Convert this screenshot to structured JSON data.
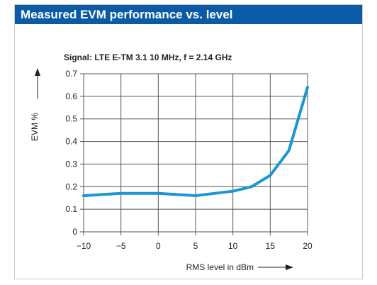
{
  "header": {
    "title": "Measured EVM performance vs. level"
  },
  "chart_data": {
    "type": "line",
    "title": "",
    "subtitle": "Signal: LTE E-TM 3.1 10 MHz, f = 2.14 GHz",
    "xlabel": "RMS level in dBm",
    "ylabel": "EVM %",
    "xlim": [
      -10,
      20
    ],
    "ylim": [
      0,
      0.7
    ],
    "x_ticks": [
      -10,
      -5,
      0,
      5,
      10,
      15,
      20
    ],
    "x_tick_labels": [
      "−10",
      "−5",
      "0",
      "5",
      "10",
      "15",
      "20"
    ],
    "y_ticks": [
      0,
      0.1,
      0.2,
      0.3,
      0.4,
      0.5,
      0.6,
      0.7
    ],
    "y_tick_labels": [
      "0",
      "0.1",
      "0.2",
      "0.3",
      "0.4",
      "0.5",
      "0.6",
      "0.7"
    ],
    "grid": true,
    "series": [
      {
        "x": [
          -10,
          -7.5,
          -5,
          -2.5,
          0,
          2.5,
          5,
          7.5,
          10,
          12.5,
          15,
          17.5,
          20
        ],
        "y": [
          0.16,
          0.165,
          0.17,
          0.17,
          0.17,
          0.165,
          0.16,
          0.17,
          0.18,
          0.2,
          0.25,
          0.36,
          0.64
        ],
        "color": "#1b96d4"
      }
    ]
  }
}
